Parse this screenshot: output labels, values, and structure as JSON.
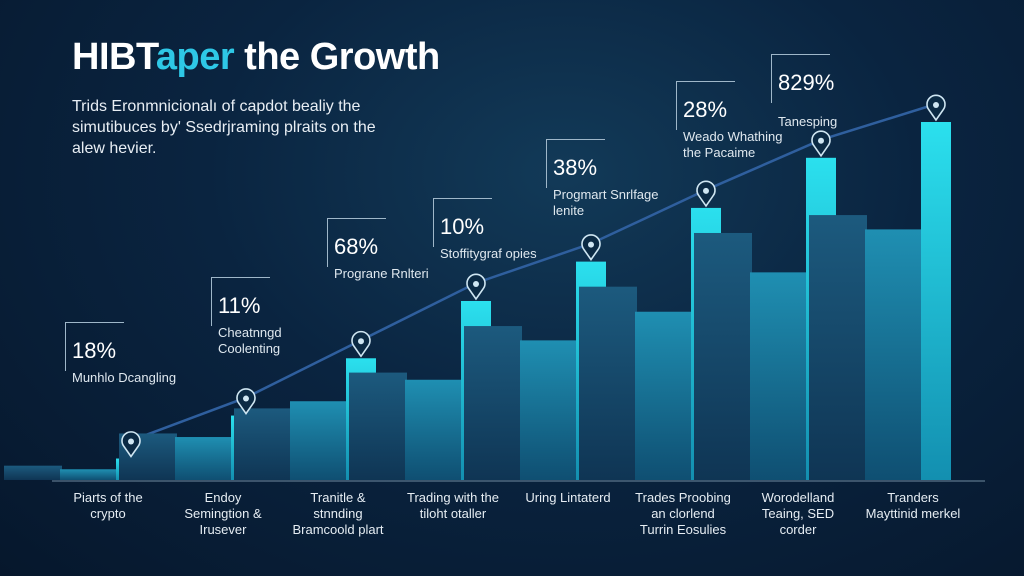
{
  "colors": {
    "background": "#0a2440",
    "bar_primary": "#22d3e6",
    "bar_secondary": "#1a7fa0",
    "bar_tertiary": "#164d6e",
    "trend_line": "#2f5f9e",
    "title_accent": "#2ec8e6"
  },
  "header": {
    "title_part1": "HIBT",
    "title_part2": "aper",
    "title_part3": " the Growth",
    "subtitle": "Trids Eronmnicionalı of capdot bealiy the simutibuces by' Ssedrjraming plraits on the alew hevier."
  },
  "chart_data": {
    "type": "bar",
    "title": "HIBTaper the Growth",
    "subtitle": "Trids Eronmnicionalı of capdot bealiy the simutibuces by' Ssedrjraming plraits on the alew hevier.",
    "categories": [
      "Piarts of the crypto",
      "Endoy Semingtion & Irusever",
      "Tranitle & stnnding Bramcoold plart",
      "Trading with the tiloht otaller",
      "Uring Lintaterd",
      "Trades Proobing an clorlend Turrin Eosulies",
      "Worodelland Teaing, SED corder",
      "Tranders Mayttinid merkel"
    ],
    "series": [
      {
        "values": [
          6,
          18,
          34,
          50,
          61,
          76,
          90,
          100
        ]
      },
      {
        "values": [
          3,
          12,
          22,
          28,
          39,
          47,
          58,
          70
        ]
      },
      {
        "values": [
          4,
          13,
          20,
          30,
          43,
          54,
          69,
          74
        ]
      }
    ],
    "annotations": [
      {
        "value": "18%",
        "label": "Munhlo Dcangling"
      },
      {
        "value": "11%",
        "label": "Cheatnngd Coolenting"
      },
      {
        "value": "68%",
        "label": "Prograne Rnlteri"
      },
      {
        "value": "10%",
        "label": "Stoffitygraf opies"
      },
      {
        "value": "38%",
        "label": "Progmart Snrlfage lenite"
      },
      {
        "value": "28%",
        "label": "Weado Whathing the Pacaime"
      },
      {
        "value": "829%",
        "label": "Tanesping"
      }
    ],
    "ylim": [
      0,
      100
    ],
    "grid": false,
    "legend": "none",
    "trend_line": true
  }
}
